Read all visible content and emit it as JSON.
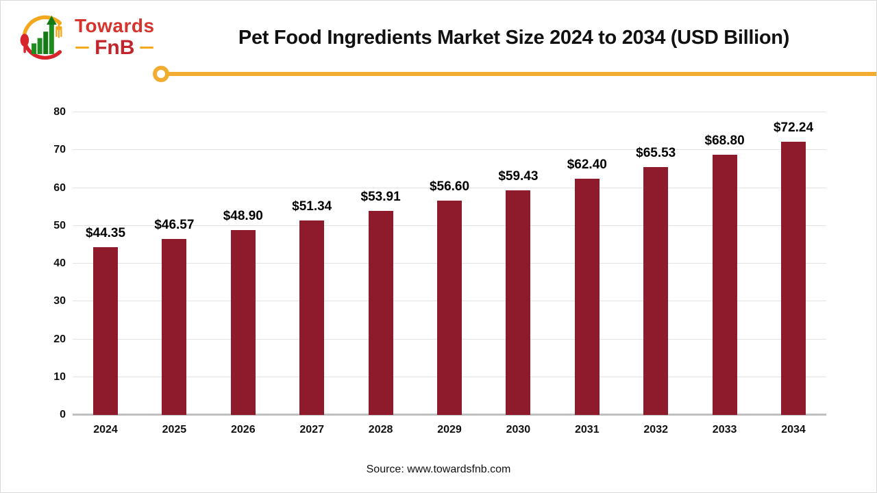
{
  "brand": {
    "line1": "Towards",
    "line2": "FnB"
  },
  "header": {
    "title": "Pet Food Ingredients Market Size 2024 to 2034 (USD Billion)"
  },
  "footer": {
    "source": "Source: www.towardsfnb.com"
  },
  "colors": {
    "accent_yellow": "#f3ac32",
    "brand_red": "#d5352d",
    "brand_dark_red": "#c1242b",
    "brand_green": "#1e8c1e",
    "gridline": "#e3e3e3",
    "axis_line": "#c0c0c0"
  },
  "chart_data": {
    "type": "bar",
    "title": "Pet Food Ingredients Market Size 2024 to 2034 (USD Billion)",
    "categories": [
      "2024",
      "2025",
      "2026",
      "2027",
      "2028",
      "2029",
      "2030",
      "2031",
      "2032",
      "2033",
      "2034"
    ],
    "values": [
      44.35,
      46.57,
      48.9,
      51.34,
      53.91,
      56.6,
      59.43,
      62.4,
      65.53,
      68.8,
      72.24
    ],
    "data_labels": [
      "$44.35",
      "$46.57",
      "$48.90",
      "$51.34",
      "$53.91",
      "$56.60",
      "$59.43",
      "$62.40",
      "$65.53",
      "$68.80",
      "$72.24"
    ],
    "bar_color": "#8e1b2c",
    "xlabel": "",
    "ylabel": "",
    "ylim": [
      0,
      80
    ],
    "yticks": [
      0,
      10,
      20,
      30,
      40,
      50,
      60,
      70,
      80
    ],
    "grid": true,
    "legend": "none"
  }
}
